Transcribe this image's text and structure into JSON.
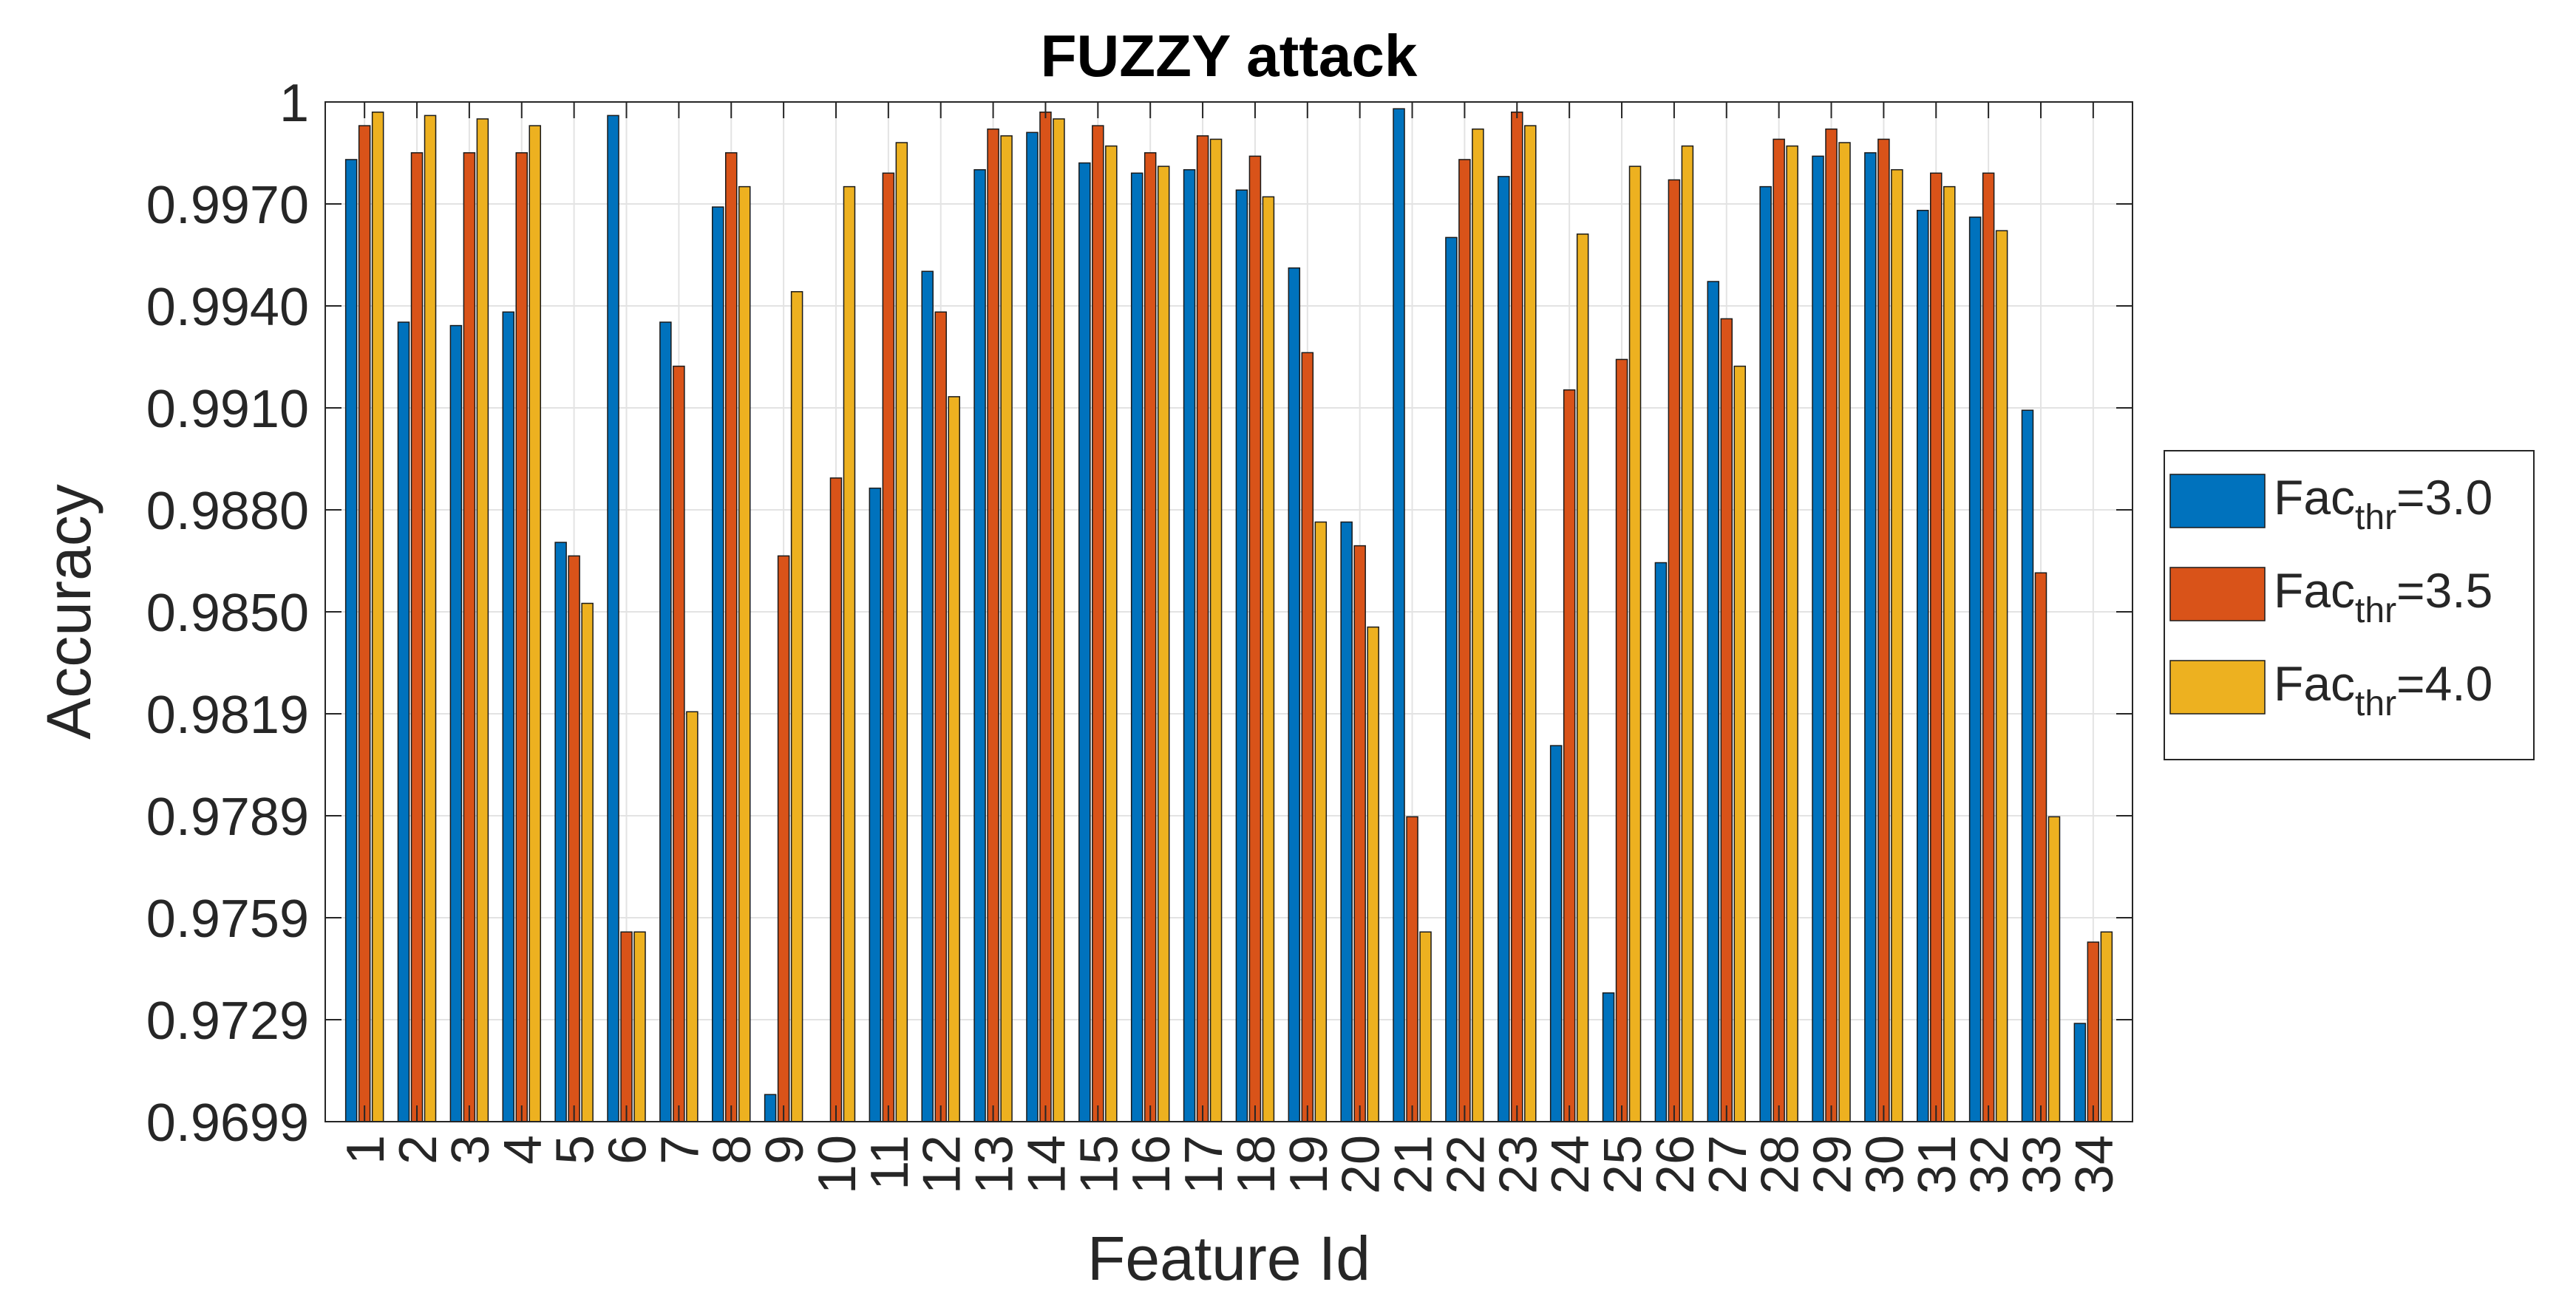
{
  "chart_data": {
    "type": "bar",
    "title": "FUZZY attack",
    "xlabel": "Feature Id",
    "ylabel": "Accuracy",
    "ylim": [
      0.9699,
      1.0
    ],
    "yticks": [
      "0.9699",
      "0.9729",
      "0.9759",
      "0.9789",
      "0.9819",
      "0.9850",
      "0.9880",
      "0.9910",
      "0.9940",
      "0.9970",
      "1"
    ],
    "grid": true,
    "legend_position": "right",
    "categories": [
      "1",
      "2",
      "3",
      "4",
      "5",
      "6",
      "7",
      "8",
      "9",
      "10",
      "11",
      "12",
      "13",
      "14",
      "15",
      "16",
      "17",
      "18",
      "19",
      "20",
      "21",
      "22",
      "23",
      "24",
      "25",
      "26",
      "27",
      "28",
      "29",
      "30",
      "31",
      "32",
      "33",
      "34"
    ],
    "series": [
      {
        "legend_base": "Fac",
        "legend_sub": "thr",
        "legend_suffix": "=3.0",
        "color": "#0072BD",
        "values": [
          0.9983,
          0.9935,
          0.9934,
          0.9938,
          0.987,
          0.9996,
          0.9935,
          0.9969,
          0.9707,
          0.9699,
          0.9886,
          0.995,
          0.998,
          0.9991,
          0.9982,
          0.9979,
          0.998,
          0.9974,
          0.9951,
          0.9876,
          0.9998,
          0.996,
          0.9978,
          0.981,
          0.9737,
          0.9864,
          0.9947,
          0.9975,
          0.9984,
          0.9985,
          0.9968,
          0.9966,
          0.9909,
          0.9728
        ]
      },
      {
        "legend_base": "Fac",
        "legend_sub": "thr",
        "legend_suffix": "=3.5",
        "color": "#D95319",
        "values": [
          0.9993,
          0.9985,
          0.9985,
          0.9985,
          0.9866,
          0.9755,
          0.9922,
          0.9985,
          0.9866,
          0.9889,
          0.9979,
          0.9938,
          0.9992,
          0.9997,
          0.9993,
          0.9985,
          0.999,
          0.9984,
          0.9926,
          0.9869,
          0.9789,
          0.9983,
          0.9997,
          0.9915,
          0.9924,
          0.9977,
          0.9936,
          0.9989,
          0.9992,
          0.9989,
          0.9979,
          0.9979,
          0.9861,
          0.9752
        ]
      },
      {
        "legend_base": "Fac",
        "legend_sub": "thr",
        "legend_suffix": "=4.0",
        "color": "#EDB120",
        "values": [
          0.9997,
          0.9996,
          0.9995,
          0.9993,
          0.9852,
          0.9755,
          0.982,
          0.9975,
          0.9944,
          0.9975,
          0.9988,
          0.9913,
          0.999,
          0.9995,
          0.9987,
          0.9981,
          0.9989,
          0.9972,
          0.9876,
          0.9845,
          0.9755,
          0.9992,
          0.9993,
          0.9961,
          0.9981,
          0.9987,
          0.9922,
          0.9987,
          0.9988,
          0.998,
          0.9975,
          0.9962,
          0.9789,
          0.9755
        ]
      }
    ]
  }
}
